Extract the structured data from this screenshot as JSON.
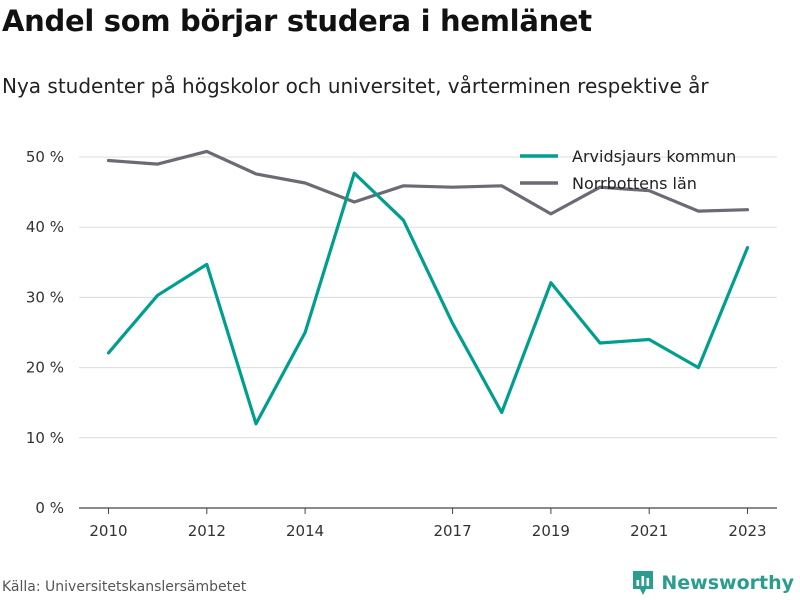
{
  "title": "Andel som börjar studera i hemlänet",
  "subtitle": "Nya studenter på högskolor och universitet, vårterminen respektive år",
  "source": "Källa: Universitetskanslersämbetet",
  "brand": {
    "name": "Newsworthy",
    "icon": "bar-chart-icon",
    "color": "#2a9d8f"
  },
  "chart_data": {
    "type": "line",
    "x": [
      2010,
      2011,
      2012,
      2013,
      2014,
      2015,
      2016,
      2017,
      2018,
      2019,
      2020,
      2021,
      2022,
      2023
    ],
    "x_tick_labels": [
      "2010",
      "2012",
      "2014",
      "2017",
      "2019",
      "2021",
      "2023"
    ],
    "x_ticks": [
      2010,
      2012,
      2014,
      2017,
      2019,
      2021,
      2023
    ],
    "y_ticks": [
      0,
      10,
      20,
      30,
      40,
      50
    ],
    "y_tick_labels": [
      "0 %",
      "10 %",
      "20 %",
      "30 %",
      "40 %",
      "50 %"
    ],
    "ylim": [
      0,
      52
    ],
    "xlim": [
      2009.4,
      2023.6
    ],
    "grid": true,
    "legend_position": "top-right",
    "series": [
      {
        "name": "Arvidsjaurs kommun",
        "color": "#009e8e",
        "values": [
          22.1,
          30.3,
          34.7,
          12.0,
          25.0,
          47.7,
          41.0,
          26.3,
          13.6,
          32.1,
          23.5,
          24.0,
          20.0,
          37.1
        ]
      },
      {
        "name": "Norrbottens län",
        "color": "#6c6b74",
        "values": [
          49.5,
          49.0,
          50.8,
          47.6,
          46.3,
          43.6,
          45.9,
          45.7,
          45.9,
          41.9,
          45.7,
          45.2,
          42.3,
          42.5
        ]
      }
    ]
  }
}
